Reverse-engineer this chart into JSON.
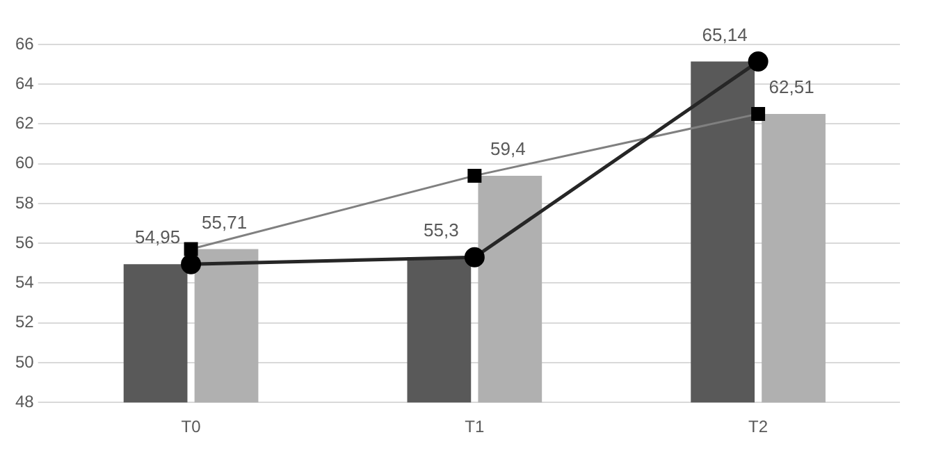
{
  "chart_data": {
    "type": "bar",
    "categories": [
      "T0",
      "T1",
      "T2"
    ],
    "series": [
      {
        "color": "#595959",
        "values": [
          54.95,
          55.3,
          65.14
        ]
      },
      {
        "color": "#b0b0b0",
        "values": [
          55.71,
          59.4,
          62.51
        ]
      },
      {
        "type": "line",
        "color": "#262626",
        "marker": "circle",
        "values": [
          54.95,
          55.3,
          65.14
        ],
        "value_labels": [
          "54,95",
          "55,3",
          "65,14"
        ]
      },
      {
        "type": "line",
        "color": "#808080",
        "marker": "square",
        "values": [
          55.71,
          59.4,
          62.51
        ],
        "value_labels": [
          "55,71",
          "59,4",
          "62,51"
        ]
      }
    ],
    "ylim": [
      48,
      66
    ],
    "yticks": [
      48,
      50,
      52,
      54,
      56,
      58,
      60,
      62,
      64,
      66
    ],
    "grid": "y"
  }
}
